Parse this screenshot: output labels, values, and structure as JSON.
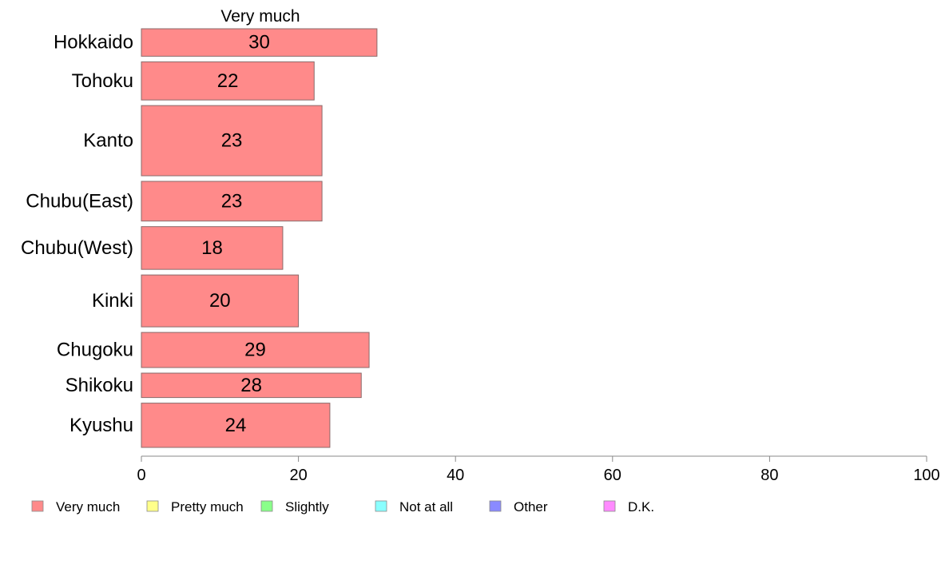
{
  "chart_data": {
    "type": "bar",
    "orientation": "horizontal",
    "title": "Very much",
    "categories": [
      "Hokkaido",
      "Tohoku",
      "Kanto",
      "Chubu(East)",
      "Chubu(West)",
      "Kinki",
      "Chugoku",
      "Shikoku",
      "Kyushu"
    ],
    "relative_bar_widths": [
      0.36,
      0.5,
      0.92,
      0.52,
      0.56,
      0.68,
      0.46,
      0.32,
      0.58
    ],
    "values": [
      30,
      22,
      23,
      23,
      18,
      20,
      29,
      28,
      24
    ],
    "xlim": [
      0,
      100
    ],
    "xticks": [
      "0",
      "20",
      "40",
      "60",
      "80",
      "100"
    ],
    "bar_color": "#ff8a8a",
    "bar_edge_color": "#8a6a6a",
    "grid": false,
    "legend": {
      "placement": "bottom",
      "items": [
        {
          "label": "Very much",
          "color": "#ff8a8a"
        },
        {
          "label": "Pretty much",
          "color": "#ffff8a"
        },
        {
          "label": "Slightly",
          "color": "#8aff8a"
        },
        {
          "label": "Not at all",
          "color": "#8affff"
        },
        {
          "label": "Other",
          "color": "#8a8aff"
        },
        {
          "label": "D.K.",
          "color": "#ff8aff"
        }
      ]
    }
  }
}
